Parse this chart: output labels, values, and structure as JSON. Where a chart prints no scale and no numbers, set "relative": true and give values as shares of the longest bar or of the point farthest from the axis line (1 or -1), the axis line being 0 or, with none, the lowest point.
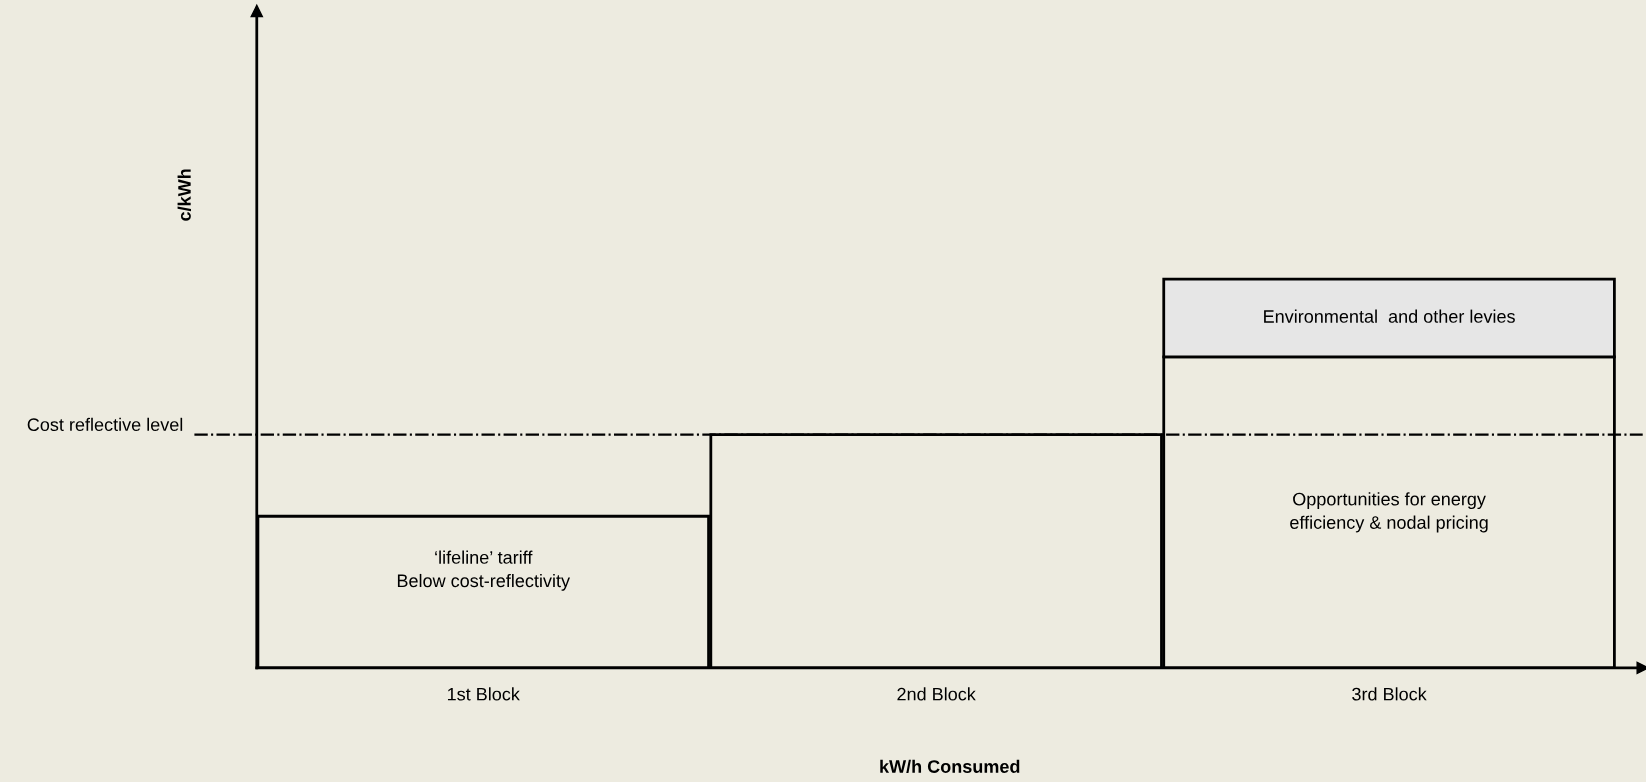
{
  "chart_data": {
    "type": "bar",
    "relative": true,
    "stacked": true,
    "categories": [
      "1st Block",
      "2nd Block",
      "3rd Block"
    ],
    "series": [
      {
        "color": "#edebe0",
        "values": [
          0.39,
          0.6,
          0.8
        ]
      },
      {
        "name": "Environmental  and other levies",
        "color": "#e6e6e6",
        "values": [
          null,
          null,
          0.2
        ]
      }
    ],
    "xlabel": "kW/h Consumed",
    "ylabel": "c/kWh",
    "ref_lines": [
      {
        "axis": "y",
        "value": 0.6,
        "label": "Cost reflective level",
        "color": "#000000",
        "line_style": "dashdot"
      }
    ],
    "annotations": [
      "‘lifeline’ tariff\nBelow cost-reflectivity",
      "Opportunities for energy\nefficiency & nodal pricing"
    ],
    "grid": false,
    "legend": false
  }
}
